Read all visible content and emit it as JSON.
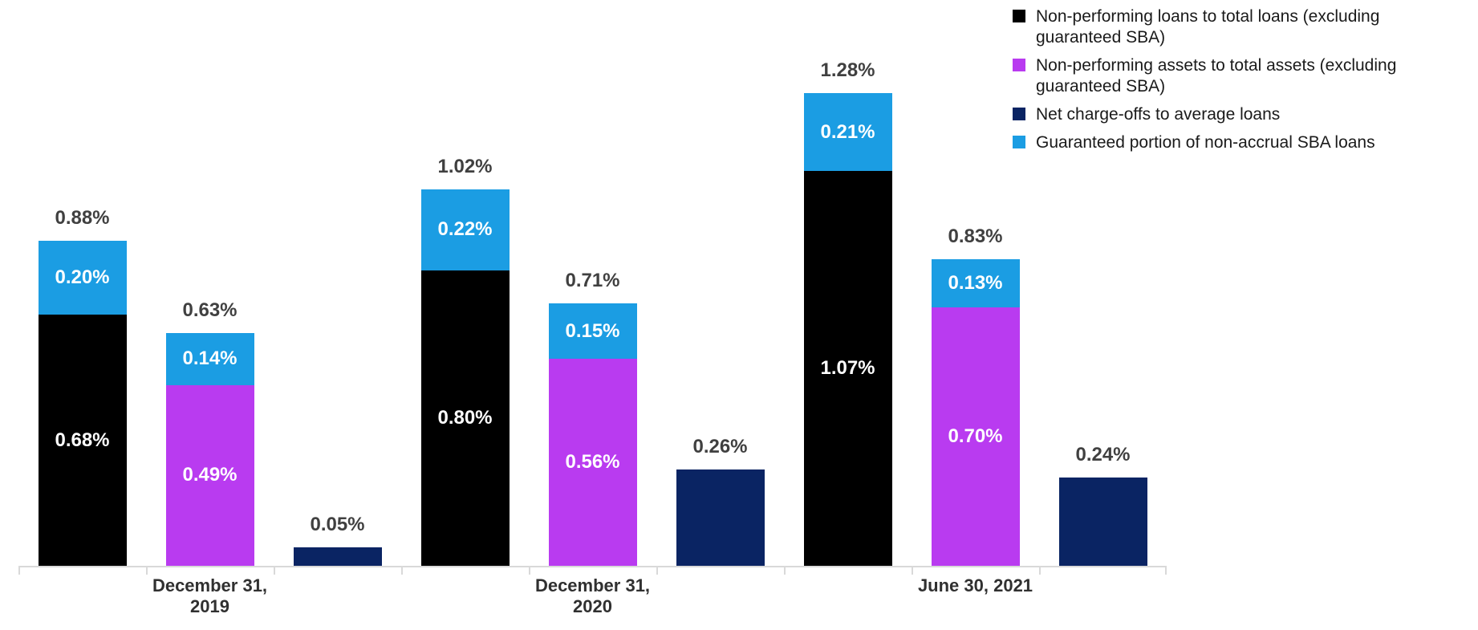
{
  "chart_data": {
    "type": "bar",
    "stacked": true,
    "orientation": "vertical",
    "unit": "%",
    "title": "",
    "xlabel": "",
    "ylabel": "",
    "ylim": [
      0,
      1.4
    ],
    "gridlines": false,
    "y_axis_visible": false,
    "legend_position": "top-right",
    "legend": [
      {
        "name": "Non-performing loans to total loans (excluding guaranteed SBA)",
        "lines": [
          "Non-performing loans to total loans (excluding",
          "guaranteed SBA)"
        ],
        "color": "#000000"
      },
      {
        "name": "Non-performing assets to total assets (excluding guaranteed SBA)",
        "lines": [
          "Non-performing assets to total assets (excluding",
          "guaranteed SBA)"
        ],
        "color": "#B93BF0"
      },
      {
        "name": "Net charge-offs to average loans",
        "lines": [
          "Net charge-offs to average loans"
        ],
        "color": "#0A2463"
      },
      {
        "name": "Guaranteed portion of non-accrual SBA loans",
        "lines": [
          "Guaranteed portion of non-accrual SBA loans"
        ],
        "color": "#1B9DE3"
      }
    ],
    "categories": [
      {
        "label": "December 31, 2019",
        "lines": [
          "December 31,",
          "2019"
        ],
        "slot": 1
      },
      {
        "label": "December 31, 2020",
        "lines": [
          "December 31,",
          "2020"
        ],
        "slot": 4
      },
      {
        "label": "June 30, 2021",
        "lines": [
          "June 30, 2021"
        ],
        "slot": 7
      }
    ],
    "bars": [
      {
        "category": "December 31, 2019",
        "slot": 0,
        "total": 0.88,
        "total_label": "0.88%",
        "segments": [
          {
            "series_index": 0,
            "value": 0.68,
            "label": "0.68%"
          },
          {
            "series_index": 3,
            "value": 0.2,
            "label": "0.20%"
          }
        ]
      },
      {
        "category": "December 31, 2019",
        "slot": 1,
        "total": 0.63,
        "total_label": "0.63%",
        "segments": [
          {
            "series_index": 1,
            "value": 0.49,
            "label": "0.49%"
          },
          {
            "series_index": 3,
            "value": 0.14,
            "label": "0.14%"
          }
        ]
      },
      {
        "category": "December 31, 2019",
        "slot": 2,
        "total": 0.05,
        "total_label": "0.05%",
        "segments": [
          {
            "series_index": 2,
            "value": 0.05,
            "label": ""
          }
        ]
      },
      {
        "category": "December 31, 2020",
        "slot": 3,
        "total": 1.02,
        "total_label": "1.02%",
        "segments": [
          {
            "series_index": 0,
            "value": 0.8,
            "label": "0.80%"
          },
          {
            "series_index": 3,
            "value": 0.22,
            "label": "0.22%"
          }
        ]
      },
      {
        "category": "December 31, 2020",
        "slot": 4,
        "total": 0.71,
        "total_label": "0.71%",
        "segments": [
          {
            "series_index": 1,
            "value": 0.56,
            "label": "0.56%"
          },
          {
            "series_index": 3,
            "value": 0.15,
            "label": "0.15%"
          }
        ]
      },
      {
        "category": "December 31, 2020",
        "slot": 5,
        "total": 0.26,
        "total_label": "0.26%",
        "segments": [
          {
            "series_index": 2,
            "value": 0.26,
            "label": ""
          }
        ]
      },
      {
        "category": "June 30, 2021",
        "slot": 6,
        "total": 1.28,
        "total_label": "1.28%",
        "segments": [
          {
            "series_index": 0,
            "value": 1.07,
            "label": "1.07%"
          },
          {
            "series_index": 3,
            "value": 0.21,
            "label": "0.21%"
          }
        ]
      },
      {
        "category": "June 30, 2021",
        "slot": 7,
        "total": 0.83,
        "total_label": "0.83%",
        "segments": [
          {
            "series_index": 1,
            "value": 0.7,
            "label": "0.70%"
          },
          {
            "series_index": 3,
            "value": 0.13,
            "label": "0.13%"
          }
        ]
      },
      {
        "category": "June 30, 2021",
        "slot": 8,
        "total": 0.24,
        "total_label": "0.24%",
        "segments": [
          {
            "series_index": 2,
            "value": 0.24,
            "label": ""
          }
        ]
      }
    ]
  },
  "colors": {
    "axis_line": "#D9D9D9",
    "total_label_text": "#404040",
    "axis_label_text": "#303030",
    "segment_label_text": "#ffffff"
  }
}
